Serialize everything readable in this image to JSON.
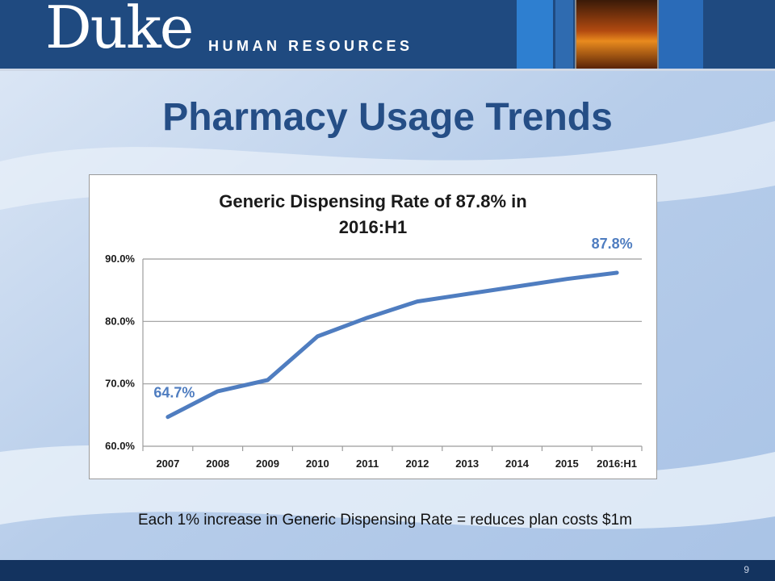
{
  "header": {
    "logo_text": "Duke",
    "department": "HUMAN RESOURCES"
  },
  "slide": {
    "title": "Pharmacy Usage Trends",
    "caption": "Each 1% increase in Generic Dispensing Rate = reduces plan costs $1m",
    "page_number": "9"
  },
  "colors": {
    "header": "#1f4a80",
    "title": "#254e86",
    "line": "#4f7dc0"
  },
  "chart_data": {
    "type": "line",
    "title_lines": [
      "Generic Dispensing Rate of 87.8% in",
      "2016:H1"
    ],
    "categories": [
      "2007",
      "2008",
      "2009",
      "2010",
      "2011",
      "2012",
      "2013",
      "2014",
      "2015",
      "2016:H1"
    ],
    "values": [
      64.7,
      68.8,
      70.6,
      77.6,
      80.6,
      83.2,
      84.4,
      85.6,
      86.8,
      87.8
    ],
    "data_labels": [
      {
        "index": 0,
        "text": "64.7%"
      },
      {
        "index": 9,
        "text": "87.8%"
      }
    ],
    "ylim": [
      60,
      90
    ],
    "yticks": [
      "60.0%",
      "70.0%",
      "80.0%",
      "90.0%"
    ],
    "ytick_values": [
      60,
      70,
      80,
      90
    ],
    "grid": true,
    "legend": "none"
  }
}
